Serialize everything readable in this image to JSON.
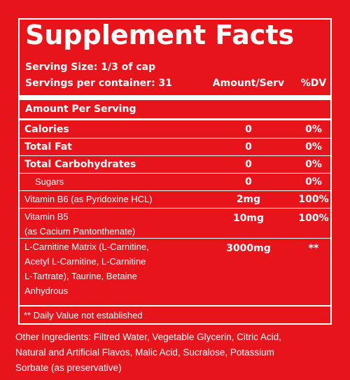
{
  "title": "Supplement Facts",
  "serving_size": "Serving Size: 1/3 of cap",
  "servings_per_container": "Servings per container: 31",
  "columns": [
    "Amount/Serv",
    "%DV"
  ],
  "section_heading": "Amount Per Serving",
  "rows": [
    {
      "name": [
        "Calories"
      ],
      "amount": "0",
      "dv": "0%"
    },
    {
      "name": [
        "Total Fat"
      ],
      "amount": "0",
      "dv": "0%"
    },
    {
      "name": [
        "Total Carbohydrates"
      ],
      "amount": "0",
      "dv": "0%"
    },
    {
      "name": [
        "Sugars"
      ],
      "amount": "0",
      "dv": "0%"
    },
    {
      "name": [
        "Vitamin B6 (as Pyridoxine HCL)"
      ],
      "amount": "2mg",
      "dv": "100%"
    },
    {
      "name": [
        "Vitamin B5",
        "(as Cacium Pantonthenate)"
      ],
      "amount": "10mg",
      "dv": "100%"
    },
    {
      "name": [
        "L-Carnitine Matrix (L-Carnitine,",
        "Acetyl L-Carnitine, L-Carnitine",
        "L-Tartrate), Taurine, Betaine",
        "Anhydrous"
      ],
      "amount": "3000mg",
      "dv": "**"
    }
  ],
  "footnote": "** Daily Value not established",
  "other_ingredients": [
    "Other Ingredients: Filtred Water, Vegetable Glycerin, Citric Acid,",
    "Natural and Artificial Flavos, Malic Acid, Sucralose, Potassium",
    "Sorbate (as preservative)"
  ]
}
